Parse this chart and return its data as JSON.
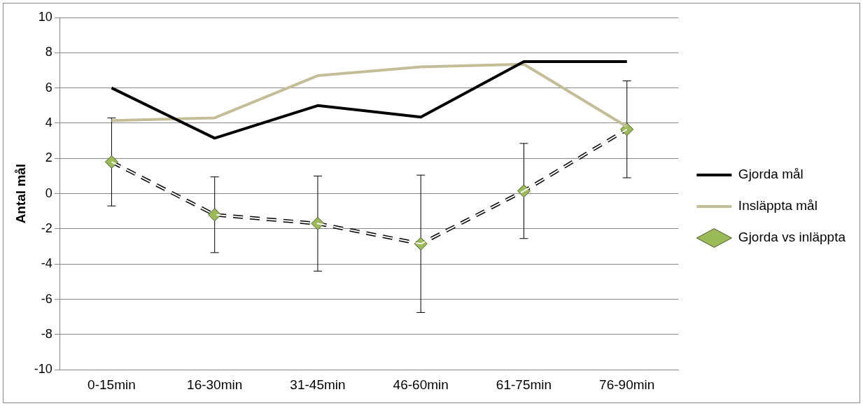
{
  "chart_data": {
    "type": "line",
    "ylabel": "Antal mål",
    "categories": [
      "0-15min",
      "16-30min",
      "31-45min",
      "46-60min",
      "61-75min",
      "76-90min"
    ],
    "series": [
      {
        "name": "Gjorda mål",
        "color": "#000000",
        "values": [
          6.0,
          3.15,
          5.0,
          4.35,
          7.5,
          7.5
        ]
      },
      {
        "name": "Insläppta mål",
        "color": "#c4bd97",
        "values": [
          4.15,
          4.3,
          6.7,
          7.2,
          7.35,
          3.8
        ]
      },
      {
        "name": "Gjorda vs inläppta",
        "color": "#9bbb59",
        "marker": "diamond",
        "line_style": "dashed",
        "values": [
          1.8,
          -1.2,
          -1.7,
          -2.85,
          0.15,
          3.65
        ],
        "errors": [
          2.5,
          2.15,
          2.7,
          3.9,
          2.7,
          2.75
        ]
      }
    ],
    "ylim": [
      -10,
      10
    ],
    "yticks": [
      -10,
      -8,
      -6,
      -4,
      -2,
      0,
      2,
      4,
      6,
      8,
      10
    ],
    "grid": "y",
    "legend": "right",
    "marker": "none",
    "line_style": "solid"
  }
}
